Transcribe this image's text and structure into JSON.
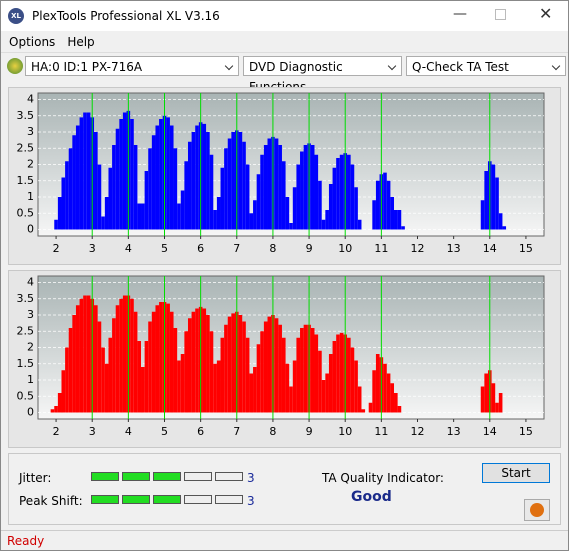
{
  "window": {
    "title": "PlexTools Professional XL V3.16",
    "icon": "XL"
  },
  "menu": [
    "Options",
    "Help"
  ],
  "toolbar": {
    "drive": "HA:0 ID:1  PX-716A",
    "function": "DVD Diagnostic Functions",
    "test": "Q-Check TA Test"
  },
  "chart_data": [
    {
      "type": "bar",
      "grid": true,
      "x": [
        1.9,
        2,
        2.1,
        2.2,
        2.3,
        2.4,
        2.5,
        2.6,
        2.7,
        2.8,
        2.9,
        3,
        3.1,
        3.2,
        3.3,
        3.4,
        3.5,
        3.6,
        3.7,
        3.8,
        3.9,
        4,
        4.1,
        4.2,
        4.3,
        4.4,
        4.5,
        4.6,
        4.7,
        4.8,
        4.9,
        5,
        5.1,
        5.2,
        5.3,
        5.4,
        5.5,
        5.6,
        5.7,
        5.8,
        5.9,
        6,
        6.1,
        6.2,
        6.3,
        6.4,
        6.5,
        6.6,
        6.7,
        6.8,
        6.9,
        7,
        7.1,
        7.2,
        7.3,
        7.4,
        7.5,
        7.6,
        7.7,
        7.8,
        7.9,
        8,
        8.1,
        8.2,
        8.3,
        8.4,
        8.5,
        8.6,
        8.7,
        8.8,
        8.9,
        9,
        9.1,
        9.2,
        9.3,
        9.4,
        9.5,
        9.6,
        9.7,
        9.8,
        9.9,
        10,
        10.1,
        10.2,
        10.3,
        10.4,
        10.5,
        10.6,
        10.7,
        10.8,
        10.9,
        11,
        11.1,
        11.2,
        11.3,
        11.4,
        11.5,
        11.6,
        11.7,
        11.8,
        11.9,
        12,
        12.1,
        12.2,
        12.3,
        12.4,
        12.5,
        12.6,
        12.7,
        12.8,
        12.9,
        13,
        13.1,
        13.2,
        13.3,
        13.4,
        13.5,
        13.6,
        13.7,
        13.8,
        13.9,
        14,
        14.1,
        14.2,
        14.3,
        14.4
      ],
      "series": [
        {
          "color": "#0000ff",
          "values": [
            0,
            0.3,
            1.0,
            1.6,
            2.1,
            2.5,
            2.9,
            3.2,
            3.45,
            3.6,
            3.6,
            3.45,
            3.0,
            2.0,
            0.4,
            1.0,
            1.9,
            2.6,
            3.1,
            3.4,
            3.6,
            3.65,
            3.4,
            2.6,
            0.8,
            0.8,
            1.8,
            2.5,
            2.9,
            3.2,
            3.4,
            3.5,
            3.45,
            3.2,
            2.5,
            0.8,
            1.2,
            2.1,
            2.7,
            3.0,
            3.2,
            3.3,
            3.25,
            3.0,
            2.3,
            0.6,
            1.0,
            1.9,
            2.5,
            2.8,
            3.0,
            3.05,
            3.0,
            2.7,
            2.0,
            0.5,
            0.9,
            1.7,
            2.3,
            2.6,
            2.8,
            2.85,
            2.8,
            2.6,
            2.1,
            1.0,
            0.2,
            1.3,
            2.0,
            2.4,
            2.6,
            2.65,
            2.6,
            2.3,
            1.5,
            0.3,
            0.6,
            1.4,
            1.9,
            2.2,
            2.3,
            2.35,
            2.3,
            2.0,
            1.3,
            0.3,
            0,
            0,
            0,
            0.9,
            1.5,
            1.7,
            1.75,
            1.5,
            1.0,
            0.6,
            0.6,
            0.1,
            0,
            0,
            0,
            0,
            0,
            0,
            0,
            0,
            0,
            0,
            0,
            0,
            0,
            0,
            0,
            0,
            0,
            0,
            0,
            0,
            0,
            0.9,
            1.8,
            2.1,
            2.0,
            1.6,
            0.5,
            0.1
          ]
        }
      ],
      "markers": [
        3,
        4,
        5,
        6,
        7,
        8,
        9,
        10,
        11,
        14
      ],
      "marker_color": "#00dd00",
      "xlim": [
        1.5,
        15.5
      ],
      "ylim": [
        -0.2,
        4.2
      ],
      "xticks": [
        2,
        3,
        4,
        5,
        6,
        7,
        8,
        9,
        10,
        11,
        12,
        13,
        14,
        15
      ],
      "yticks": [
        0,
        0.5,
        1,
        1.5,
        2,
        2.5,
        3,
        3.5,
        4
      ]
    },
    {
      "type": "bar",
      "grid": true,
      "x": [
        1.9,
        2,
        2.1,
        2.2,
        2.3,
        2.4,
        2.5,
        2.6,
        2.7,
        2.8,
        2.9,
        3,
        3.1,
        3.2,
        3.3,
        3.4,
        3.5,
        3.6,
        3.7,
        3.8,
        3.9,
        4,
        4.1,
        4.2,
        4.3,
        4.4,
        4.5,
        4.6,
        4.7,
        4.8,
        4.9,
        5,
        5.1,
        5.2,
        5.3,
        5.4,
        5.5,
        5.6,
        5.7,
        5.8,
        5.9,
        6,
        6.1,
        6.2,
        6.3,
        6.4,
        6.5,
        6.6,
        6.7,
        6.8,
        6.9,
        7,
        7.1,
        7.2,
        7.3,
        7.4,
        7.5,
        7.6,
        7.7,
        7.8,
        7.9,
        8,
        8.1,
        8.2,
        8.3,
        8.4,
        8.5,
        8.6,
        8.7,
        8.8,
        8.9,
        9,
        9.1,
        9.2,
        9.3,
        9.4,
        9.5,
        9.6,
        9.7,
        9.8,
        9.9,
        10,
        10.1,
        10.2,
        10.3,
        10.4,
        10.5,
        10.6,
        10.7,
        10.8,
        10.9,
        11,
        11.1,
        11.2,
        11.3,
        11.4,
        11.5,
        11.6,
        11.7,
        11.8,
        11.9,
        12,
        12.1,
        12.2,
        12.3,
        12.4,
        12.5,
        12.6,
        12.7,
        12.8,
        12.9,
        13,
        13.1,
        13.2,
        13.3,
        13.4,
        13.5,
        13.6,
        13.7,
        13.8,
        13.9,
        14,
        14.1,
        14.2,
        14.3,
        14.4
      ],
      "series": [
        {
          "color": "#ff0000",
          "values": [
            0.1,
            0.2,
            0.6,
            1.3,
            2.0,
            2.6,
            3.0,
            3.3,
            3.5,
            3.6,
            3.6,
            3.5,
            3.3,
            2.8,
            2.0,
            1.5,
            2.3,
            2.9,
            3.3,
            3.5,
            3.6,
            3.6,
            3.5,
            3.1,
            2.2,
            1.4,
            2.2,
            2.8,
            3.1,
            3.3,
            3.4,
            3.4,
            3.35,
            3.1,
            2.6,
            1.6,
            1.8,
            2.5,
            2.9,
            3.1,
            3.2,
            3.25,
            3.2,
            3.0,
            2.5,
            1.5,
            1.6,
            2.3,
            2.7,
            2.95,
            3.05,
            3.1,
            3.0,
            2.8,
            2.3,
            1.2,
            1.4,
            2.1,
            2.5,
            2.8,
            2.95,
            3.0,
            2.9,
            2.7,
            2.3,
            1.5,
            0.8,
            1.6,
            2.3,
            2.6,
            2.7,
            2.7,
            2.6,
            2.4,
            1.9,
            1.0,
            1.2,
            1.8,
            2.2,
            2.4,
            2.45,
            2.4,
            2.3,
            2.0,
            1.6,
            0.8,
            0.1,
            0,
            0.3,
            1.3,
            1.8,
            1.7,
            1.5,
            1.2,
            0.9,
            0.6,
            0.2,
            0,
            0,
            0,
            0,
            0,
            0,
            0,
            0,
            0,
            0,
            0,
            0,
            0,
            0,
            0,
            0,
            0,
            0,
            0,
            0,
            0,
            0,
            0.8,
            1.2,
            1.3,
            0.9,
            0.3,
            0.6,
            0
          ]
        }
      ],
      "markers": [
        3,
        4,
        5,
        6,
        7,
        8,
        9,
        10,
        11,
        14
      ],
      "marker_color": "#00dd00",
      "xlim": [
        1.5,
        15.5
      ],
      "ylim": [
        -0.2,
        4.2
      ],
      "xticks": [
        2,
        3,
        4,
        5,
        6,
        7,
        8,
        9,
        10,
        11,
        12,
        13,
        14,
        15
      ],
      "yticks": [
        0,
        0.5,
        1,
        1.5,
        2,
        2.5,
        3,
        3.5,
        4
      ]
    }
  ],
  "metrics": {
    "jitter": {
      "label": "Jitter:",
      "value": 3
    },
    "peak_shift": {
      "label": "Peak Shift:",
      "value": 3
    }
  },
  "quality": {
    "label": "TA Quality Indicator:",
    "value": "Good"
  },
  "buttons": {
    "start": "Start"
  },
  "status": "Ready"
}
